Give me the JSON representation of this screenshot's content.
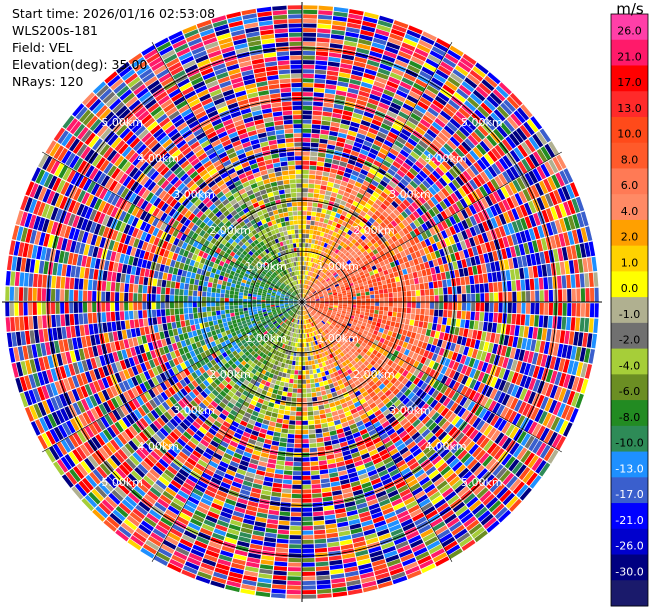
{
  "header": {
    "start_time": "Start time: 2026/01/16 02:53:08",
    "instrument": "WLS200s-181",
    "field": "Field: VEL",
    "elevation": "Elevation(deg): 35.00",
    "nrays": "NRays: 120"
  },
  "chart_data": {
    "type": "polar-ppi",
    "field": "VEL",
    "units": "m/s",
    "n_rays": 120,
    "elevation_deg": 35.0,
    "range_rings_km": [
      1.0,
      2.0,
      3.0,
      4.0,
      5.0
    ],
    "range_ring_labels": [
      "1.00km",
      "2.00km",
      "3.00km",
      "4.00km",
      "5.00km"
    ],
    "max_range_km": 5.9,
    "ring_label_azimuths_deg": [
      -45,
      45,
      135,
      225
    ],
    "colorbar": {
      "unit_label": "m/s",
      "tick_labels": [
        "26.0",
        "21.0",
        "17.0",
        "13.0",
        "10.0",
        "8.0",
        "6.0",
        "4.0",
        "2.0",
        "1.0",
        "0.0",
        "-1.0",
        "-2.0",
        "-4.0",
        "-6.0",
        "-8.0",
        "-10.0",
        "-13.0",
        "-17.0",
        "-21.0",
        "-26.0",
        "-30.0"
      ],
      "colors": [
        "#ff3fa8",
        "#ff1a6a",
        "#ff0000",
        "#ff2a2a",
        "#ff4a1a",
        "#ff5a2a",
        "#ff7a55",
        "#ff8a65",
        "#ffa000",
        "#ffd200",
        "#ffff00",
        "#b0b090",
        "#707070",
        "#a6ce39",
        "#6b8e23",
        "#228b22",
        "#2e8b57",
        "#1e90ff",
        "#3a5fcd",
        "#0000ff",
        "#0000cd",
        "#000080",
        "#1a1a6b"
      ]
    },
    "pattern": "radial wind field: near-center approaching (green/blue) on west side, receding (orange/red) on east side; noisy high-variance speckle beyond ~2.5 km"
  }
}
